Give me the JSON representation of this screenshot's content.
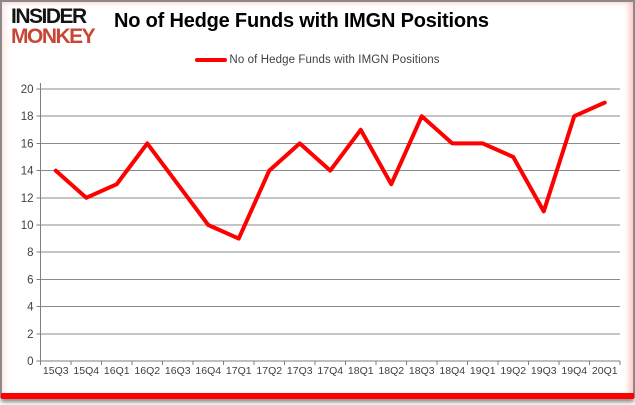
{
  "logo": {
    "line1": "INSIDER",
    "line2": "MONKEY"
  },
  "header": {
    "title": "No of Hedge Funds with IMGN Positions"
  },
  "legend": {
    "label": "No of Hedge Funds with IMGN Positions"
  },
  "colors": {
    "series_red": "#fe0000",
    "grid": "#8b8b8b",
    "axis": "#7f7f7f",
    "tick_text": "#3f3f3f",
    "logo_red": "#c74634",
    "accent_bar": "#fe0000"
  },
  "chart_data": {
    "type": "line",
    "title": "No of Hedge Funds with IMGN Positions",
    "categories": [
      "15Q3",
      "15Q4",
      "16Q1",
      "16Q2",
      "16Q3",
      "16Q4",
      "17Q1",
      "17Q2",
      "17Q3",
      "17Q4",
      "18Q1",
      "18Q2",
      "18Q3",
      "18Q4",
      "19Q1",
      "19Q2",
      "19Q3",
      "19Q4",
      "20Q1"
    ],
    "series": [
      {
        "name": "No of Hedge Funds with IMGN Positions",
        "color": "#fe0000",
        "values": [
          14,
          12,
          13,
          16,
          13,
          10,
          9,
          14,
          16,
          14,
          17,
          13,
          18,
          16,
          16,
          15,
          11,
          18,
          19
        ]
      }
    ],
    "xlabel": "",
    "ylabel": "",
    "ylim": [
      0,
      20
    ],
    "ytick_step": 2,
    "grid": true,
    "legend_position": "top-center"
  }
}
